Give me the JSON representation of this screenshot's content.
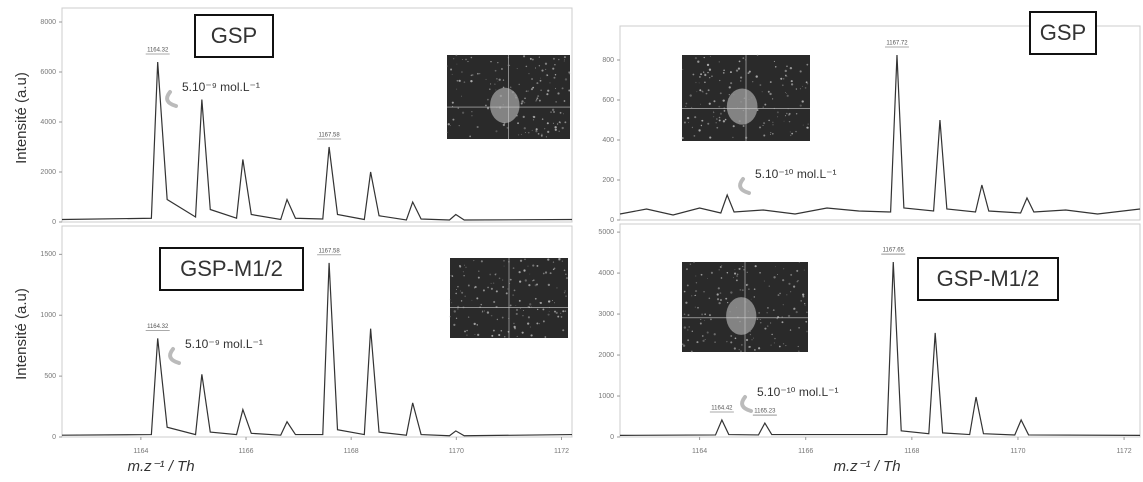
{
  "chart_data": [
    {
      "type": "line",
      "label": "GSP",
      "annotation": "5.10⁻⁹ mol.L⁻¹",
      "ylabel": "Intensité (a.u)",
      "color": "#333333",
      "xlim": [
        1162.5,
        1172.2
      ],
      "ylim": [
        0,
        8400
      ],
      "yticks": [
        0,
        2000,
        4000,
        6000,
        8000
      ],
      "x": [
        1162.5,
        1164.2,
        1164.32,
        1164.5,
        1165.04,
        1165.16,
        1165.32,
        1165.82,
        1165.94,
        1166.1,
        1166.66,
        1166.78,
        1166.94,
        1167.46,
        1167.58,
        1167.74,
        1168.25,
        1168.37,
        1168.53,
        1169.05,
        1169.17,
        1169.33,
        1169.87,
        1169.99,
        1170.15,
        1172.2
      ],
      "values": [
        100,
        150,
        6400,
        900,
        200,
        4900,
        500,
        150,
        2500,
        300,
        100,
        900,
        150,
        120,
        3000,
        300,
        100,
        2000,
        250,
        80,
        800,
        120,
        80,
        300,
        80,
        100
      ],
      "peak_labels": [
        1164.32,
        1167.58
      ]
    },
    {
      "type": "line",
      "label": "GSP-M1/2",
      "annotation": "5.10⁻⁹ mol.L⁻¹",
      "ylabel": "Intensité (a.u)",
      "xlabel": "m.z⁻¹ / Th",
      "color": "#333333",
      "xlim": [
        1162.5,
        1172.2
      ],
      "xticks": [
        1164,
        1166,
        1168,
        1170,
        1172
      ],
      "ylim": [
        0,
        1700
      ],
      "yticks": [
        0,
        500,
        1000,
        1500
      ],
      "x": [
        1162.5,
        1164.2,
        1164.32,
        1164.5,
        1165.04,
        1165.16,
        1165.32,
        1165.82,
        1165.94,
        1166.1,
        1166.66,
        1166.78,
        1166.94,
        1167.46,
        1167.58,
        1167.74,
        1168.25,
        1168.37,
        1168.53,
        1169.05,
        1169.17,
        1169.33,
        1169.87,
        1169.99,
        1170.15,
        1172.2
      ],
      "values": [
        15,
        20,
        810,
        80,
        20,
        515,
        40,
        20,
        225,
        30,
        15,
        125,
        20,
        20,
        1430,
        60,
        20,
        890,
        40,
        15,
        280,
        20,
        10,
        50,
        10,
        20
      ],
      "peak_labels": [
        1164.32,
        1167.58
      ]
    },
    {
      "type": "line",
      "label": "GSP",
      "annotation": "5.10⁻¹⁰ mol.L⁻¹",
      "color": "#333333",
      "xlim": [
        1162.5,
        1172.3
      ],
      "ylim": [
        0,
        950
      ],
      "yticks": [
        0,
        200,
        400,
        600,
        800
      ],
      "x": [
        1162.5,
        1163.0,
        1163.5,
        1164.0,
        1164.4,
        1164.52,
        1164.65,
        1165.2,
        1165.8,
        1166.4,
        1167.0,
        1167.6,
        1167.72,
        1167.85,
        1168.41,
        1168.53,
        1168.66,
        1169.2,
        1169.32,
        1169.45,
        1170.05,
        1170.17,
        1170.3,
        1170.9,
        1171.5,
        1172.3
      ],
      "values": [
        30,
        55,
        25,
        60,
        35,
        125,
        40,
        50,
        30,
        60,
        45,
        40,
        825,
        60,
        45,
        500,
        55,
        40,
        175,
        45,
        35,
        110,
        40,
        50,
        30,
        55
      ],
      "peak_labels": [
        1167.72
      ]
    },
    {
      "type": "line",
      "label": "GSP-M1/2",
      "annotation": "5.10⁻¹⁰ mol.L⁻¹",
      "xlabel": "m.z⁻¹ / Th",
      "color": "#333333",
      "xlim": [
        1162.5,
        1172.3
      ],
      "xticks": [
        1164,
        1166,
        1168,
        1170,
        1172
      ],
      "ylim": [
        0,
        5100
      ],
      "yticks": [
        0,
        1000,
        2000,
        3000,
        4000,
        5000
      ],
      "x": [
        1162.5,
        1164.3,
        1164.42,
        1164.55,
        1165.11,
        1165.23,
        1165.36,
        1167.53,
        1167.65,
        1167.8,
        1168.32,
        1168.44,
        1168.58,
        1169.09,
        1169.21,
        1169.35,
        1169.94,
        1170.06,
        1170.2,
        1172.3
      ],
      "values": [
        40,
        50,
        415,
        60,
        50,
        340,
        60,
        60,
        4270,
        150,
        80,
        2540,
        100,
        60,
        975,
        80,
        50,
        415,
        50,
        40
      ],
      "peak_labels": [
        1164.42,
        1165.23,
        1167.65
      ]
    }
  ]
}
